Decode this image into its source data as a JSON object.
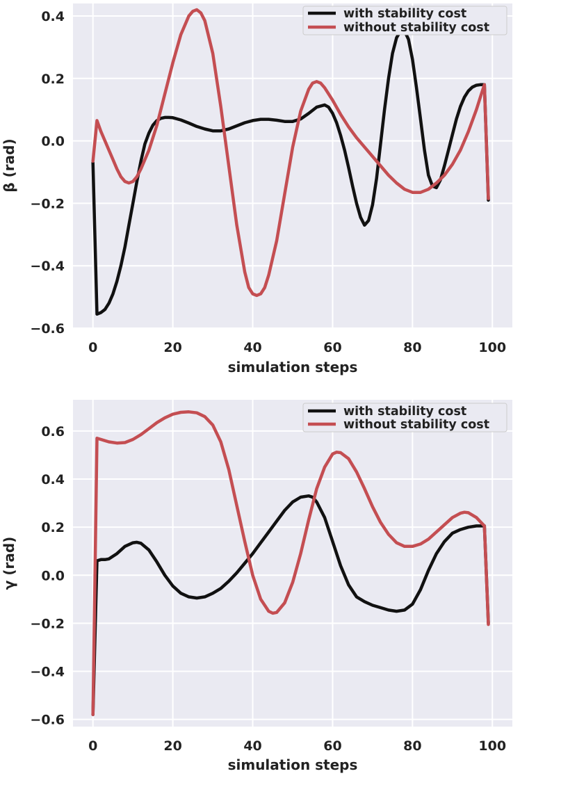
{
  "chart_data": [
    {
      "type": "line",
      "xlabel": "simulation steps",
      "ylabel": "β (rad)",
      "xlim": [
        -5,
        105
      ],
      "ylim": [
        -0.6,
        0.44
      ],
      "xticks": [
        0,
        20,
        40,
        60,
        80,
        100
      ],
      "yticks": [
        -0.6,
        -0.4,
        -0.2,
        0.0,
        0.2,
        0.4
      ],
      "xtick_labels": [
        "0",
        "20",
        "40",
        "60",
        "80",
        "100"
      ],
      "ytick_labels": [
        "−0.6",
        "−0.4",
        "−0.2",
        "0.0",
        "0.2",
        "0.4"
      ],
      "grid": true,
      "legend_position": "top-right",
      "series": [
        {
          "name": "with stability cost",
          "color": "#111111",
          "x": [
            0,
            1,
            2,
            3,
            4,
            5,
            6,
            7,
            8,
            9,
            10,
            11,
            12,
            13,
            14,
            15,
            16,
            17,
            18,
            19,
            20,
            22,
            24,
            26,
            28,
            30,
            32,
            34,
            36,
            38,
            40,
            42,
            44,
            46,
            48,
            50,
            52,
            54,
            56,
            58,
            59,
            60,
            61,
            62,
            63,
            64,
            65,
            66,
            67,
            68,
            69,
            70,
            71,
            72,
            73,
            74,
            75,
            76,
            77,
            78,
            79,
            80,
            81,
            82,
            83,
            84,
            85,
            86,
            87,
            88,
            89,
            90,
            91,
            92,
            93,
            94,
            95,
            96,
            97,
            98,
            99
          ],
          "values": [
            -0.07,
            -0.555,
            -0.55,
            -0.54,
            -0.52,
            -0.49,
            -0.45,
            -0.4,
            -0.34,
            -0.27,
            -0.2,
            -0.13,
            -0.065,
            -0.01,
            0.025,
            0.05,
            0.065,
            0.072,
            0.075,
            0.075,
            0.074,
            0.067,
            0.057,
            0.046,
            0.038,
            0.032,
            0.032,
            0.038,
            0.048,
            0.058,
            0.065,
            0.069,
            0.069,
            0.066,
            0.062,
            0.062,
            0.07,
            0.088,
            0.108,
            0.115,
            0.108,
            0.088,
            0.058,
            0.018,
            -0.03,
            -0.085,
            -0.145,
            -0.2,
            -0.245,
            -0.27,
            -0.255,
            -0.205,
            -0.12,
            -0.01,
            0.1,
            0.2,
            0.28,
            0.33,
            0.352,
            0.352,
            0.325,
            0.26,
            0.17,
            0.07,
            -0.03,
            -0.11,
            -0.145,
            -0.15,
            -0.125,
            -0.08,
            -0.03,
            0.02,
            0.07,
            0.11,
            0.14,
            0.16,
            0.172,
            0.178,
            0.18,
            0.18,
            -0.19
          ]
        },
        {
          "name": "without stability cost",
          "color": "#c44e52",
          "x": [
            0,
            1,
            2,
            3,
            4,
            5,
            6,
            7,
            8,
            9,
            10,
            11,
            12,
            14,
            16,
            18,
            20,
            22,
            24,
            25,
            26,
            27,
            28,
            30,
            32,
            34,
            36,
            38,
            39,
            40,
            41,
            42,
            43,
            44,
            46,
            48,
            50,
            52,
            54,
            55,
            56,
            57,
            58,
            60,
            62,
            64,
            66,
            68,
            70,
            72,
            74,
            76,
            78,
            80,
            82,
            84,
            86,
            88,
            90,
            92,
            94,
            96,
            97,
            98,
            99
          ],
          "values": [
            -0.065,
            0.065,
            0.03,
            0.0,
            -0.03,
            -0.06,
            -0.09,
            -0.115,
            -0.13,
            -0.135,
            -0.13,
            -0.115,
            -0.09,
            -0.03,
            0.05,
            0.15,
            0.25,
            0.34,
            0.4,
            0.415,
            0.42,
            0.41,
            0.385,
            0.28,
            0.11,
            -0.08,
            -0.27,
            -0.42,
            -0.47,
            -0.49,
            -0.495,
            -0.49,
            -0.47,
            -0.43,
            -0.32,
            -0.17,
            -0.02,
            0.095,
            0.165,
            0.185,
            0.19,
            0.185,
            0.17,
            0.13,
            0.085,
            0.045,
            0.01,
            -0.02,
            -0.05,
            -0.08,
            -0.11,
            -0.135,
            -0.155,
            -0.165,
            -0.165,
            -0.155,
            -0.135,
            -0.11,
            -0.075,
            -0.03,
            0.03,
            0.1,
            0.14,
            0.18,
            -0.185
          ]
        }
      ]
    },
    {
      "type": "line",
      "xlabel": "simulation steps",
      "ylabel": "γ (rad)",
      "xlim": [
        -5,
        105
      ],
      "ylim": [
        -0.63,
        0.73
      ],
      "xticks": [
        0,
        20,
        40,
        60,
        80,
        100
      ],
      "yticks": [
        -0.6,
        -0.4,
        -0.2,
        0.0,
        0.2,
        0.4,
        0.6
      ],
      "xtick_labels": [
        "0",
        "20",
        "40",
        "60",
        "80",
        "100"
      ],
      "ytick_labels": [
        "−0.6",
        "−0.4",
        "−0.2",
        "0.0",
        "0.2",
        "0.4",
        "0.6"
      ],
      "grid": true,
      "legend_position": "top-right",
      "series": [
        {
          "name": "with stability cost",
          "color": "#111111",
          "x": [
            0,
            1,
            2,
            3,
            4,
            6,
            8,
            10,
            11,
            12,
            14,
            16,
            18,
            20,
            22,
            24,
            26,
            28,
            30,
            32,
            34,
            36,
            38,
            40,
            42,
            44,
            46,
            48,
            50,
            52,
            54,
            55,
            56,
            58,
            60,
            62,
            64,
            66,
            68,
            70,
            72,
            74,
            76,
            78,
            80,
            82,
            84,
            86,
            88,
            90,
            92,
            94,
            96,
            98,
            99
          ],
          "values": [
            -0.58,
            0.06,
            0.065,
            0.065,
            0.068,
            0.09,
            0.12,
            0.135,
            0.137,
            0.133,
            0.105,
            0.055,
            0.0,
            -0.045,
            -0.075,
            -0.09,
            -0.095,
            -0.09,
            -0.075,
            -0.055,
            -0.025,
            0.01,
            0.05,
            0.09,
            0.135,
            0.18,
            0.225,
            0.27,
            0.305,
            0.325,
            0.33,
            0.325,
            0.305,
            0.24,
            0.14,
            0.04,
            -0.04,
            -0.09,
            -0.11,
            -0.125,
            -0.135,
            -0.145,
            -0.15,
            -0.145,
            -0.12,
            -0.06,
            0.02,
            0.09,
            0.14,
            0.175,
            0.19,
            0.2,
            0.205,
            0.205,
            -0.2
          ]
        },
        {
          "name": "without stability cost",
          "color": "#c44e52",
          "x": [
            0,
            1,
            2,
            4,
            6,
            8,
            10,
            12,
            14,
            16,
            18,
            20,
            22,
            24,
            26,
            28,
            30,
            32,
            34,
            36,
            38,
            40,
            42,
            44,
            45,
            46,
            48,
            50,
            52,
            54,
            56,
            58,
            60,
            61,
            62,
            64,
            66,
            68,
            70,
            72,
            74,
            76,
            78,
            80,
            82,
            84,
            86,
            88,
            90,
            92,
            93,
            94,
            96,
            98,
            99
          ],
          "values": [
            -0.58,
            0.57,
            0.565,
            0.555,
            0.55,
            0.552,
            0.565,
            0.585,
            0.61,
            0.635,
            0.655,
            0.67,
            0.678,
            0.68,
            0.676,
            0.66,
            0.625,
            0.555,
            0.44,
            0.29,
            0.14,
            0.0,
            -0.1,
            -0.15,
            -0.158,
            -0.155,
            -0.115,
            -0.03,
            0.09,
            0.23,
            0.36,
            0.45,
            0.505,
            0.512,
            0.51,
            0.485,
            0.43,
            0.36,
            0.285,
            0.22,
            0.17,
            0.135,
            0.12,
            0.12,
            0.13,
            0.15,
            0.18,
            0.21,
            0.24,
            0.258,
            0.262,
            0.26,
            0.24,
            0.205,
            -0.205
          ]
        }
      ]
    }
  ]
}
